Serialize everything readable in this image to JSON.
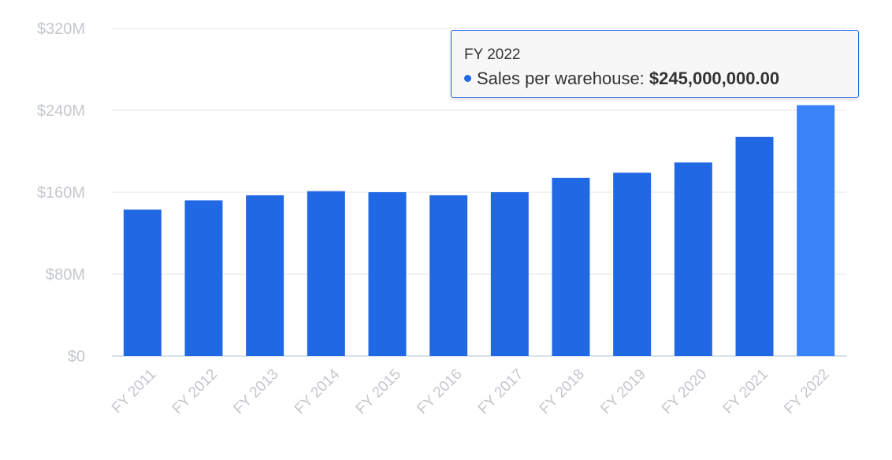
{
  "chart_data": {
    "type": "bar",
    "categories": [
      "FY 2011",
      "FY 2012",
      "FY 2013",
      "FY 2014",
      "FY 2015",
      "FY 2016",
      "FY 2017",
      "FY 2018",
      "FY 2019",
      "FY 2020",
      "FY 2021",
      "FY 2022"
    ],
    "series": [
      {
        "name": "Sales per warehouse",
        "values": [
          143000000,
          152000000,
          157000000,
          161000000,
          160000000,
          157000000,
          160000000,
          174000000,
          179000000,
          189000000,
          214000000,
          245000000
        ]
      }
    ],
    "yticks": [
      "$0",
      "$80M",
      "$160M",
      "$240M",
      "$320M"
    ],
    "ylim": [
      0,
      320000000
    ],
    "grid": true,
    "bar_color": "#2168e4",
    "highlight_color": "#3a82f7",
    "highlight_index": 11
  },
  "tooltip": {
    "title": "FY 2022",
    "series_label": "Sales per warehouse: ",
    "value": "$245,000,000.00",
    "dot_color": "#2168e4",
    "border_color": "#2468e6"
  }
}
